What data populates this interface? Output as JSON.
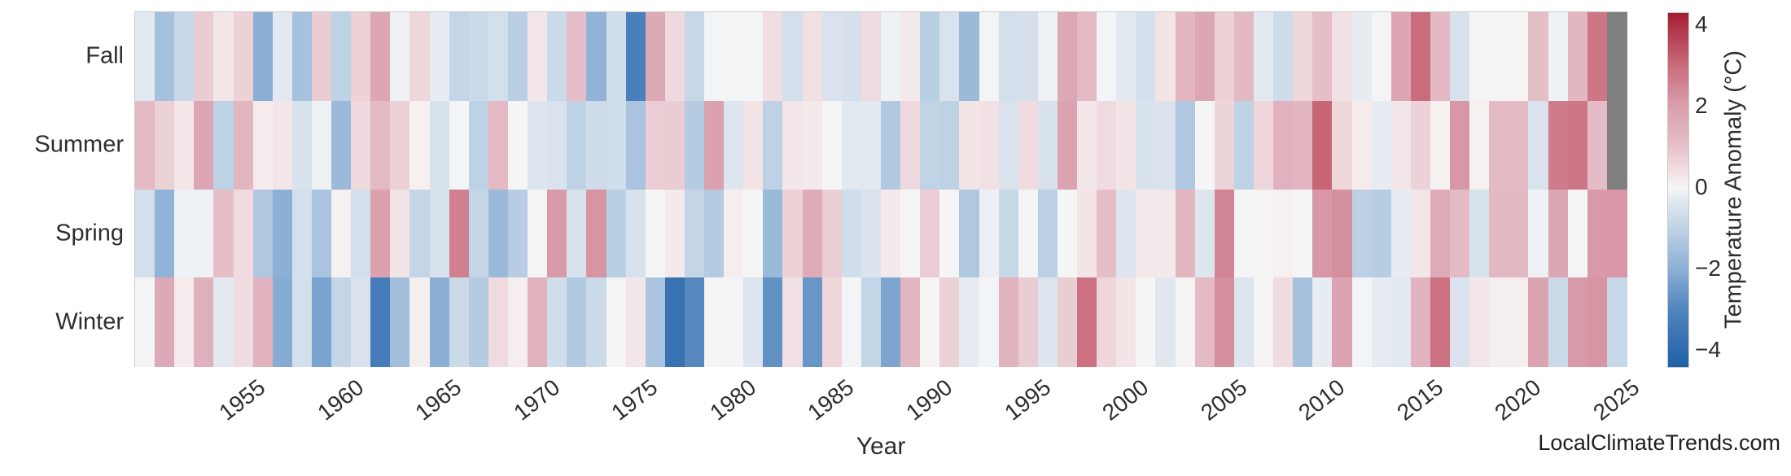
{
  "watermark": "LocalClimateTrends.com",
  "colors": {
    "background": "#ffffff",
    "frame": "#c9c9c9",
    "text": "#2e2e2e",
    "missing_cell": "#7f7f7f"
  },
  "chart_data": {
    "type": "heatmap",
    "title": "",
    "xlabel": "Year",
    "ylabel": "",
    "x_start_year": 1950,
    "x_end_year": 2025,
    "x_tick_years": [
      1955,
      1960,
      1965,
      1970,
      1975,
      1980,
      1985,
      1990,
      1995,
      2000,
      2005,
      2010,
      2015,
      2020,
      2025
    ],
    "rows": [
      "Fall",
      "Summer",
      "Spring",
      "Winter"
    ],
    "missing_note": "Fall and Summer 2025 are missing (gray cells)",
    "colorbar": {
      "label": "Temperature Anomaly (°C)",
      "ticks": [
        4,
        2,
        0,
        -2,
        -4
      ],
      "vmin": -4.4,
      "vmax": 4.3,
      "colormap_stops": [
        {
          "v": -4.4,
          "c": "#1f60a8"
        },
        {
          "v": -3.0,
          "c": "#5084bd"
        },
        {
          "v": -2.0,
          "c": "#8cb0d5"
        },
        {
          "v": -1.0,
          "c": "#bed2e5"
        },
        {
          "v": -0.4,
          "c": "#dde5ee"
        },
        {
          "v": -0.1,
          "c": "#eff2f5"
        },
        {
          "v": 0.0,
          "c": "#f6f5f5"
        },
        {
          "v": 0.1,
          "c": "#f6f0f1"
        },
        {
          "v": 0.4,
          "c": "#f2e1e4"
        },
        {
          "v": 1.0,
          "c": "#e6c1ca"
        },
        {
          "v": 2.0,
          "c": "#da9fae"
        },
        {
          "v": 3.0,
          "c": "#c96c7c"
        },
        {
          "v": 4.3,
          "c": "#a51d30"
        }
      ]
    },
    "series": [
      {
        "name": "Fall",
        "values": [
          -0.3,
          -1.5,
          -0.8,
          0.8,
          0.3,
          0.7,
          -2.0,
          -0.3,
          -1.5,
          0.8,
          -1.0,
          0.7,
          1.8,
          -0.1,
          0.6,
          -0.25,
          -0.9,
          -0.75,
          -0.6,
          -1.1,
          0.3,
          -0.75,
          1.1,
          -1.9,
          -0.65,
          -3.2,
          1.7,
          0.55,
          -0.85,
          -0.05,
          -0.05,
          -0.05,
          0.45,
          -0.6,
          0.4,
          -0.45,
          -0.55,
          0.5,
          -0.1,
          0.25,
          -1.1,
          -0.45,
          -1.7,
          -0.05,
          -0.6,
          -0.55,
          -0.1,
          1.75,
          1.2,
          -0.05,
          -0.3,
          -0.55,
          0.35,
          1.35,
          1.8,
          0.7,
          1.25,
          -0.3,
          -0.7,
          0.6,
          1.1,
          0.4,
          -0.25,
          -0.05,
          1.8,
          3.0,
          1.25,
          -0.5,
          0.0,
          0.05,
          0.05,
          1.1,
          -0.1,
          1.3,
          2.8,
          null
        ]
      },
      {
        "name": "Summer",
        "values": [
          1.2,
          0.7,
          0.3,
          1.8,
          -1.0,
          1.3,
          0.2,
          0.3,
          -0.5,
          -0.1,
          -1.7,
          0.55,
          1.2,
          0.7,
          0.1,
          -0.5,
          -0.05,
          -1.0,
          1.2,
          0.0,
          -0.4,
          -0.45,
          -1.0,
          -0.7,
          -0.65,
          -1.4,
          0.75,
          0.8,
          -1.2,
          1.95,
          -0.4,
          0.35,
          -1.0,
          0.3,
          0.25,
          0.0,
          -0.3,
          -0.3,
          -1.25,
          0.55,
          -0.95,
          -1.0,
          0.35,
          0.4,
          -0.45,
          0.5,
          -0.5,
          1.9,
          0.3,
          0.5,
          0.35,
          -0.5,
          -0.45,
          -1.3,
          0.0,
          0.65,
          -1.0,
          0.6,
          1.45,
          1.3,
          3.1,
          0.6,
          0.2,
          -0.25,
          0.3,
          0.7,
          0.1,
          2.15,
          0.1,
          1.2,
          1.2,
          -0.45,
          2.7,
          2.8,
          1.15,
          null
        ]
      },
      {
        "name": "Spring",
        "values": [
          -0.6,
          -1.9,
          -0.1,
          -0.1,
          1.1,
          0.5,
          -1.3,
          -2.0,
          -0.6,
          -1.4,
          0.1,
          -0.6,
          1.95,
          0.35,
          -0.9,
          -0.5,
          2.6,
          -0.9,
          -1.7,
          -1.15,
          0.0,
          2.1,
          -0.5,
          2.2,
          -1.1,
          -0.5,
          0.0,
          0.25,
          -0.9,
          -1.2,
          0.15,
          0.0,
          -1.7,
          0.7,
          1.65,
          0.75,
          -0.65,
          -0.45,
          0.25,
          0.0,
          0.75,
          0.0,
          -1.3,
          -0.15,
          -0.85,
          -0.05,
          -1.05,
          0.0,
          0.35,
          1.1,
          -0.4,
          0.25,
          0.25,
          1.3,
          -0.4,
          2.5,
          0.0,
          0.05,
          0.1,
          0.0,
          2.15,
          2.3,
          -1.05,
          -1.15,
          -0.25,
          0.3,
          1.65,
          1.2,
          -0.5,
          1.25,
          1.25,
          -0.1,
          1.8,
          0.0,
          2.1,
          2.15
        ]
      },
      {
        "name": "Winter",
        "values": [
          -0.05,
          1.7,
          0.2,
          1.5,
          -0.3,
          0.5,
          1.4,
          -2.1,
          -0.6,
          -2.3,
          -0.9,
          -0.45,
          -3.3,
          -1.55,
          0.15,
          -2.0,
          -0.75,
          -1.2,
          0.5,
          0.15,
          1.45,
          -0.65,
          -1.25,
          -0.75,
          0.0,
          0.3,
          -1.4,
          -3.7,
          -2.9,
          0.0,
          -0.05,
          -0.4,
          -2.7,
          0.4,
          -2.6,
          0.6,
          -0.05,
          -0.9,
          -2.25,
          1.3,
          0.05,
          0.7,
          -0.25,
          -0.05,
          1.4,
          0.8,
          -0.4,
          0.8,
          2.9,
          0.6,
          0.35,
          0.0,
          -0.35,
          0.05,
          1.2,
          2.3,
          -0.4,
          0.05,
          0.5,
          -1.5,
          -0.25,
          1.85,
          -0.05,
          -0.25,
          -0.3,
          1.4,
          2.9,
          -0.45,
          0.3,
          0.15,
          0.15,
          1.85,
          -0.75,
          2.1,
          2.2,
          -0.85
        ]
      }
    ]
  }
}
